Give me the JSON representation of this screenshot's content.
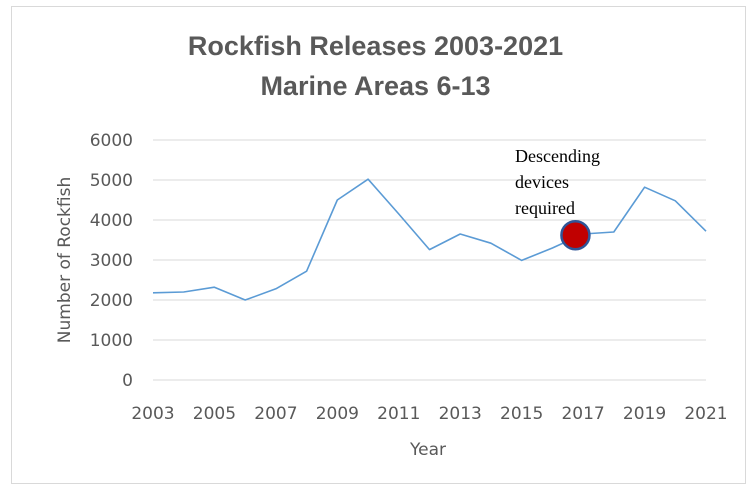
{
  "chart_data": {
    "type": "line",
    "title": "Rockfish Releases 2003-2021",
    "subtitle": "Marine Areas 6-13",
    "xlabel": "Year",
    "ylabel": "Number of Rockfish",
    "x": [
      2003,
      2004,
      2005,
      2006,
      2007,
      2008,
      2009,
      2010,
      2011,
      2012,
      2013,
      2014,
      2015,
      2016,
      2017,
      2018,
      2019,
      2020,
      2021
    ],
    "x_tick_labels": [
      "2003",
      "2005",
      "2007",
      "2009",
      "2011",
      "2013",
      "2015",
      "2017",
      "2019",
      "2021"
    ],
    "y_tick_labels": [
      "0",
      "1000",
      "2000",
      "3000",
      "4000",
      "5000",
      "6000"
    ],
    "ylim": [
      0,
      6000
    ],
    "series": [
      {
        "values": [
          2180,
          2200,
          2320,
          2000,
          2280,
          2720,
          4500,
          5020,
          4150,
          3260,
          3650,
          3420,
          2990,
          3300,
          3650,
          3700,
          4820,
          4480,
          3720
        ],
        "color": "#5b9bd5"
      }
    ],
    "annotation": {
      "lines": [
        "Descending",
        "devices",
        "required"
      ],
      "x": 2016.75,
      "y": 3620,
      "marker_fill": "#c00000",
      "marker_stroke": "#2f5597"
    },
    "grid": true,
    "legend": "none"
  }
}
